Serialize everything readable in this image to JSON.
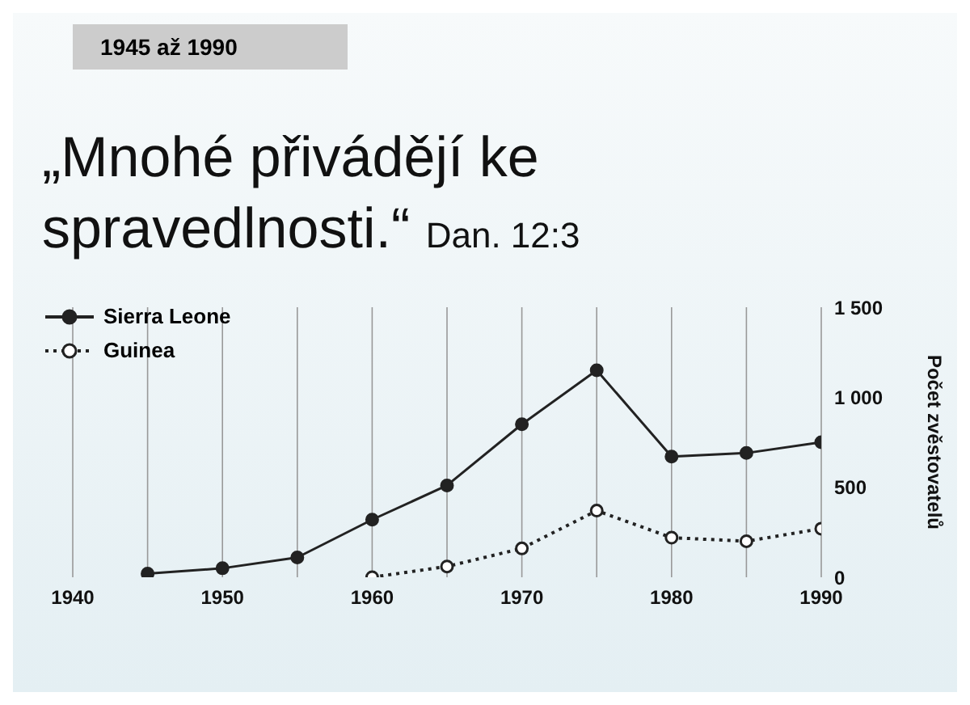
{
  "chart_data": {
    "type": "line",
    "title": "„Mnohé přivádějí ke spravedlnosti.“",
    "subtitle": "Dan. 12:3",
    "annotations": [
      "1945 až 1990"
    ],
    "ylabel": "Počet zvěstovatelů",
    "x": [
      1945,
      1950,
      1955,
      1960,
      1965,
      1970,
      1975,
      1980,
      1985,
      1990
    ],
    "series": [
      {
        "name": "Sierra Leone",
        "color": "#222222",
        "line_style": "solid",
        "values": [
          20,
          50,
          110,
          320,
          510,
          850,
          1150,
          670,
          690,
          750
        ]
      },
      {
        "name": "Guinea",
        "color": "#222222",
        "line_style": "dotted",
        "values": [
          null,
          null,
          null,
          0,
          60,
          160,
          370,
          220,
          200,
          270
        ]
      }
    ],
    "xlim": [
      1940,
      1990
    ],
    "xticks": [
      1940,
      {
        "value": 1945,
        "label": null
      },
      1950,
      {
        "value": 1955,
        "label": null
      },
      1960,
      {
        "value": 1965,
        "label": null
      },
      1970,
      {
        "value": 1975,
        "label": null
      },
      1980,
      {
        "value": 1985,
        "label": null
      },
      1990
    ],
    "ylim": [
      0,
      1500
    ],
    "yticks": [
      0,
      500,
      {
        "value": 1000,
        "label": "1 000"
      },
      {
        "value": 1500,
        "label": "1 500"
      }
    ],
    "grid": "x",
    "legend": "top left",
    "marker": "circle"
  }
}
